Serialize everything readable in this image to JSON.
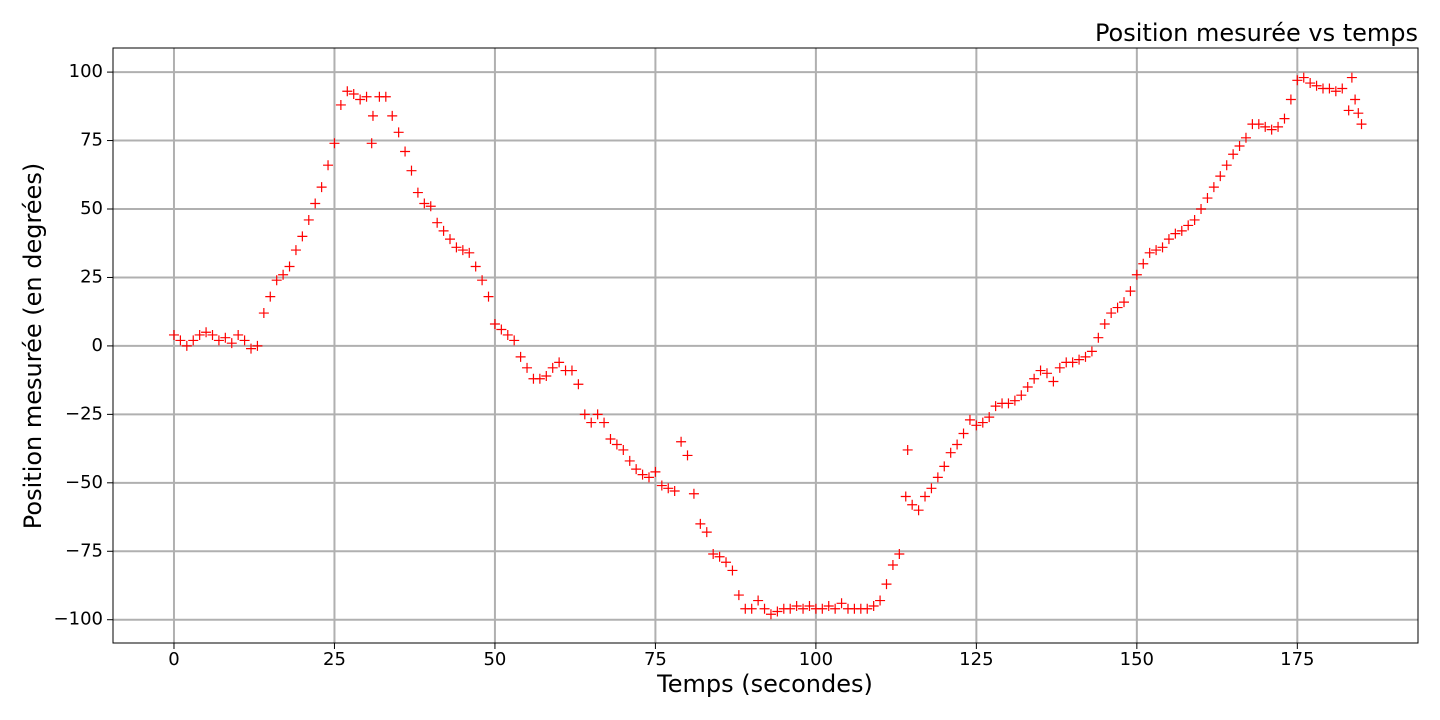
{
  "chart_data": {
    "type": "scatter",
    "title": "Position mesurée vs temps",
    "x_label": "Temps (secondes)",
    "y_label": "Position mesurée (en degrées)",
    "grid": true,
    "xlim": [
      -9.5,
      193.8
    ],
    "ylim": [
      -108.5,
      108.8
    ],
    "xticks": [
      0,
      25,
      50,
      75,
      100,
      125,
      150,
      175
    ],
    "yticks": [
      {
        "value": -100,
        "label": "−100"
      },
      {
        "value": -75,
        "label": "−75"
      },
      {
        "value": -50,
        "label": "−50"
      },
      {
        "value": -25,
        "label": "−25"
      },
      0,
      25,
      50,
      75,
      100
    ],
    "series": [
      {
        "color": "#ff0000",
        "marker": "+",
        "x": [
          0,
          1,
          2,
          3,
          4,
          5,
          6,
          7,
          8,
          9,
          10,
          11,
          12,
          13,
          14,
          15,
          16,
          17,
          18,
          19,
          20,
          21,
          22,
          23,
          24,
          25,
          26,
          27,
          28,
          29,
          30,
          31,
          32,
          33,
          34,
          35,
          36,
          37,
          38,
          39,
          40,
          41,
          42,
          43,
          44,
          45,
          46,
          47,
          48,
          49,
          50,
          51,
          52,
          53,
          54,
          55,
          56,
          57,
          58,
          59,
          60,
          61,
          62,
          63,
          64,
          65,
          66,
          67,
          68,
          69,
          70,
          71,
          72,
          73,
          74,
          75,
          76,
          77,
          78,
          79,
          80,
          81,
          82,
          83,
          84,
          85,
          86,
          87,
          88,
          89,
          90,
          91,
          92,
          93,
          94,
          95,
          96,
          97,
          98,
          99,
          100,
          101,
          102,
          103,
          104,
          105,
          106,
          107,
          108,
          109,
          110,
          111,
          112,
          113,
          114,
          115,
          116,
          117,
          118,
          119,
          120,
          121,
          122,
          123,
          124,
          125,
          126,
          127,
          128,
          129,
          130,
          131,
          132,
          133,
          134,
          135,
          136,
          137,
          138,
          139,
          140,
          141,
          142,
          143,
          144,
          145,
          146,
          147,
          148,
          149,
          150,
          151,
          152,
          153,
          154,
          155,
          156,
          157,
          158,
          159,
          160,
          161,
          162,
          163,
          164,
          165,
          166,
          167,
          168,
          169,
          170,
          171,
          172,
          173,
          174,
          175,
          176,
          177,
          178,
          179,
          180,
          181,
          182,
          183,
          184,
          30.8,
          114.3,
          184.5,
          185,
          183.5
        ],
        "values": [
          4,
          2,
          0,
          2,
          4,
          5,
          4,
          2,
          3,
          1,
          4,
          2,
          -1,
          0,
          12,
          18,
          24,
          26,
          29,
          35,
          40,
          46,
          52,
          58,
          66,
          74,
          88,
          93,
          92,
          90,
          91,
          84,
          91,
          91,
          84,
          78,
          71,
          64,
          56,
          52,
          51,
          45,
          42,
          39,
          36,
          35,
          34,
          29,
          24,
          18,
          8,
          6,
          4,
          2,
          -4,
          -8,
          -12,
          -12,
          -11,
          -8,
          -6,
          -9,
          -9,
          -14,
          -25,
          -28,
          -25,
          -28,
          -34,
          -36,
          -38,
          -42,
          -45,
          -47,
          -48,
          -46,
          -51,
          -52,
          -53,
          -35,
          -40,
          -54,
          -65,
          -68,
          -76,
          -77,
          -79,
          -82,
          -91,
          -96,
          -96,
          -93,
          -96,
          -98,
          -97,
          -96,
          -96,
          -95,
          -96,
          -95,
          -96,
          -96,
          -95,
          -96,
          -94,
          -96,
          -96,
          -96,
          -96,
          -95,
          -93,
          -87,
          -80,
          -76,
          -55,
          -58,
          -60,
          -55,
          -52,
          -48,
          -44,
          -39,
          -36,
          -32,
          -27,
          -29,
          -28,
          -26,
          -22,
          -21,
          -21,
          -20,
          -18,
          -15,
          -12,
          -9,
          -10,
          -13,
          -8,
          -6,
          -6,
          -5,
          -4,
          -2,
          3,
          8,
          12,
          14,
          16,
          20,
          26,
          30,
          34,
          35,
          36,
          39,
          41,
          42,
          44,
          46,
          50,
          54,
          58,
          62,
          66,
          70,
          73,
          76,
          81,
          81,
          80,
          79,
          80,
          83,
          90,
          97,
          98,
          96,
          95,
          94,
          94,
          93,
          94,
          86,
          90,
          74,
          -38,
          85,
          81,
          98
        ]
      }
    ]
  }
}
